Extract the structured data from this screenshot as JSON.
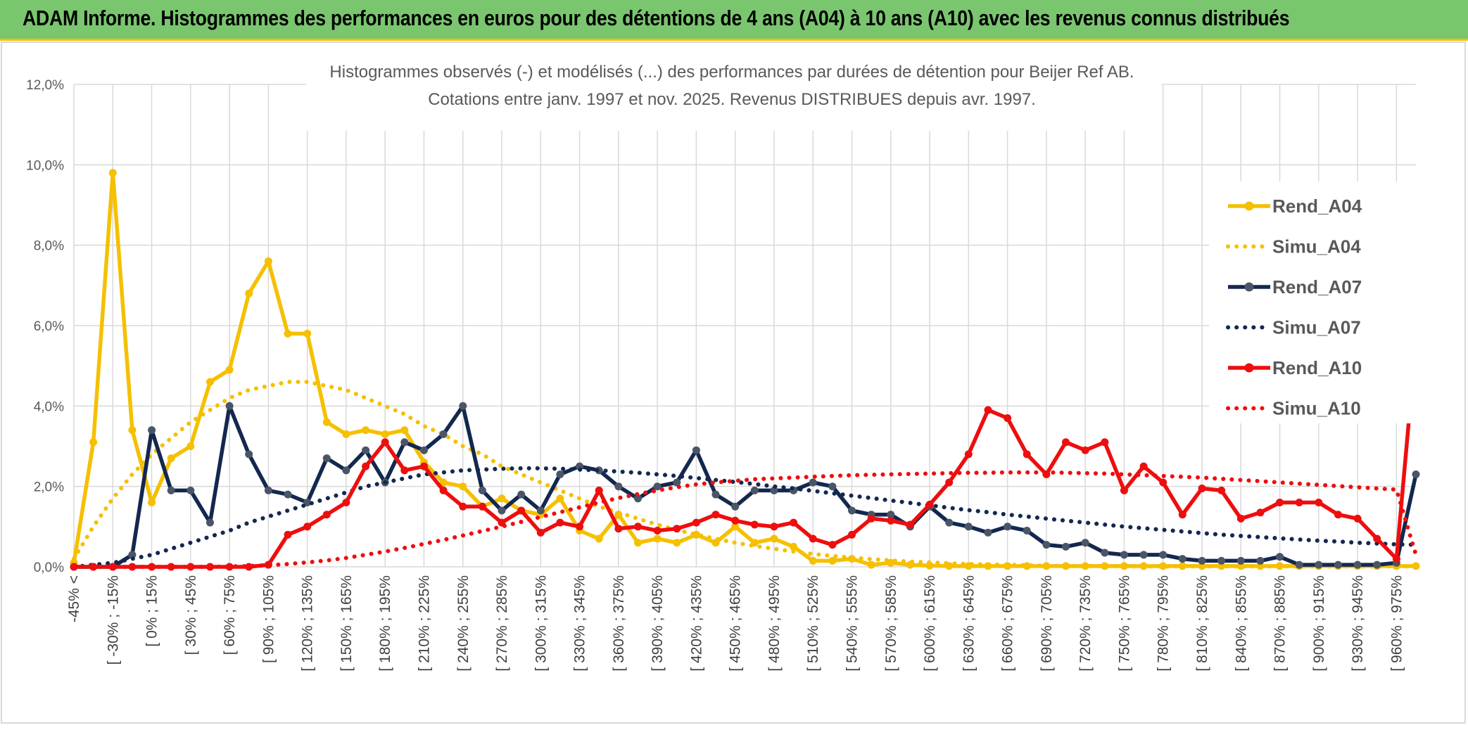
{
  "header": {
    "title": "ADAM Informe. Histogrammes des performances en euros pour des détentions de 4 ans (A04) à 10 ans (A10) avec les revenus connus distribués"
  },
  "chart_data": {
    "type": "line",
    "title": "Histogrammes observés (-) et modélisés (...) des performances par durées de détention pour Beijer Ref AB.",
    "subtitle": "Cotations entre janv. 1997 et nov. 2025. Revenus DISTRIBUES depuis avr. 1997.",
    "xlabel": "",
    "ylabel": "",
    "ylim": [
      0,
      12
    ],
    "y_ticks": [
      "0,0%",
      "2,0%",
      "4,0%",
      "6,0%",
      "8,0%",
      "10,0%",
      "12,0%"
    ],
    "grid": true,
    "legend_position": "right",
    "x_tick_labels": [
      "-45% <",
      "[ -30% ; -15%",
      "[ 0% ; 15%",
      "[ 30% ; 45%",
      "[ 60% ; 75%",
      "[ 90% ; 105%",
      "[ 120% ; 135%",
      "[ 150% ; 165%",
      "[ 180% ; 195%",
      "[ 210% ; 225%",
      "[ 240% ; 255%",
      "[ 270% ; 285%",
      "[ 300% ; 315%",
      "[ 330% ; 345%",
      "[ 360% ; 375%",
      "[ 390% ; 405%",
      "[ 420% ; 435%",
      "[ 450% ; 465%",
      "[ 480% ; 495%",
      "[ 510% ; 525%",
      "[ 540% ; 555%",
      "[ 570% ; 585%",
      "[ 600% ; 615%",
      "[ 630% ; 645%",
      "[ 660% ; 675%",
      "[ 690% ; 705%",
      "[ 720% ; 735%",
      "[ 750% ; 765%",
      "[ 780% ; 795%",
      "[ 810% ; 825%",
      "[ 840% ; 855%",
      "[ 870% ; 885%",
      "[ 900% ; 915%",
      "[ 930% ; 945%",
      "[ 960% ; 975%"
    ],
    "x_tick_every": 2,
    "num_categories": 70,
    "series": [
      {
        "name": "Rend_A04",
        "style": "solid",
        "color": "#f5c000",
        "values": [
          0.1,
          3.1,
          9.8,
          3.4,
          1.6,
          2.7,
          3.0,
          4.6,
          4.9,
          6.8,
          7.6,
          5.8,
          5.8,
          3.6,
          3.3,
          3.4,
          3.3,
          3.4,
          2.6,
          2.1,
          2.0,
          1.5,
          1.7,
          1.4,
          1.3,
          1.7,
          0.9,
          0.7,
          1.3,
          0.6,
          0.7,
          0.6,
          0.8,
          0.6,
          1.0,
          0.6,
          0.7,
          0.5,
          0.15,
          0.15,
          0.2,
          0.05,
          0.1,
          0.05,
          0.03,
          0.02,
          0.02,
          0.02,
          0.02,
          0.02,
          0.02,
          0.02,
          0.02,
          0.02,
          0.02,
          0.02,
          0.02,
          0.02,
          0.02,
          0.02,
          0.02,
          0.02,
          0.02,
          0.02,
          0.02,
          0.02,
          0.02,
          0.02,
          0.02,
          0.02
        ]
      },
      {
        "name": "Simu_A04",
        "style": "dotted",
        "color": "#f5c000",
        "values": [
          0.2,
          1.0,
          1.7,
          2.3,
          2.8,
          3.2,
          3.6,
          3.9,
          4.2,
          4.4,
          4.5,
          4.6,
          4.6,
          4.5,
          4.4,
          4.2,
          4.0,
          3.8,
          3.5,
          3.3,
          3.0,
          2.8,
          2.5,
          2.3,
          2.1,
          1.9,
          1.7,
          1.5,
          1.35,
          1.2,
          1.05,
          0.92,
          0.8,
          0.7,
          0.6,
          0.52,
          0.45,
          0.38,
          0.32,
          0.27,
          0.23,
          0.19,
          0.16,
          0.13,
          0.11,
          0.09,
          0.07,
          0.06,
          0.05,
          0.04,
          0.03,
          0.02,
          0.02,
          0.02,
          0.01,
          0.01,
          0.01,
          0.01,
          0.01,
          0.01,
          0.01,
          0.01,
          0.01,
          0.01,
          0.01,
          0.01,
          0.01,
          0.01,
          0.01,
          0.01
        ]
      },
      {
        "name": "Rend_A07",
        "style": "solid",
        "color": "#13284f",
        "values": [
          0.0,
          0.0,
          0.0,
          0.3,
          3.4,
          1.9,
          1.9,
          1.1,
          4.0,
          2.8,
          1.9,
          1.8,
          1.6,
          2.7,
          2.4,
          2.9,
          2.1,
          3.1,
          2.9,
          3.3,
          4.0,
          1.9,
          1.4,
          1.8,
          1.4,
          2.3,
          2.5,
          2.4,
          2.0,
          1.7,
          2.0,
          2.1,
          2.9,
          1.8,
          1.5,
          1.9,
          1.9,
          1.9,
          2.1,
          2.0,
          1.4,
          1.3,
          1.3,
          1.0,
          1.5,
          1.1,
          1.0,
          0.85,
          1.0,
          0.9,
          0.55,
          0.5,
          0.6,
          0.35,
          0.3,
          0.3,
          0.3,
          0.2,
          0.15,
          0.15,
          0.15,
          0.15,
          0.25,
          0.05,
          0.05,
          0.05,
          0.05,
          0.05,
          0.1,
          2.3
        ]
      },
      {
        "name": "Simu_A07",
        "style": "dotted",
        "color": "#13284f",
        "values": [
          0.0,
          0.05,
          0.1,
          0.2,
          0.3,
          0.45,
          0.6,
          0.75,
          0.9,
          1.1,
          1.25,
          1.4,
          1.55,
          1.7,
          1.85,
          2.0,
          2.1,
          2.2,
          2.3,
          2.35,
          2.4,
          2.42,
          2.44,
          2.45,
          2.45,
          2.44,
          2.42,
          2.4,
          2.37,
          2.34,
          2.3,
          2.26,
          2.21,
          2.16,
          2.11,
          2.06,
          2.0,
          1.95,
          1.89,
          1.83,
          1.77,
          1.71,
          1.65,
          1.59,
          1.53,
          1.47,
          1.41,
          1.36,
          1.3,
          1.25,
          1.2,
          1.15,
          1.1,
          1.05,
          1.0,
          0.96,
          0.92,
          0.88,
          0.84,
          0.8,
          0.77,
          0.74,
          0.71,
          0.68,
          0.65,
          0.63,
          0.6,
          0.58,
          0.56,
          0.55
        ]
      },
      {
        "name": "Rend_A10",
        "style": "solid",
        "color": "#ee0e0e",
        "values": [
          0.0,
          0.0,
          0.0,
          0.0,
          0.0,
          0.0,
          0.0,
          0.0,
          0.0,
          0.0,
          0.05,
          0.8,
          1.0,
          1.3,
          1.6,
          2.5,
          3.1,
          2.4,
          2.5,
          1.9,
          1.5,
          1.5,
          1.1,
          1.4,
          0.85,
          1.1,
          1.0,
          1.9,
          0.95,
          1.0,
          0.9,
          0.95,
          1.1,
          1.3,
          1.15,
          1.05,
          1.0,
          1.1,
          0.7,
          0.55,
          0.8,
          1.2,
          1.15,
          1.05,
          1.55,
          2.1,
          2.8,
          3.9,
          3.7,
          2.8,
          2.3,
          3.1,
          2.9,
          3.1,
          1.9,
          2.5,
          2.1,
          1.3,
          1.95,
          1.9,
          1.2,
          1.35,
          1.6,
          1.6,
          1.6,
          1.3,
          1.2,
          0.7,
          0.2,
          5.6
        ]
      },
      {
        "name": "Simu_A10",
        "style": "dotted",
        "color": "#ee0e0e",
        "values": [
          0.0,
          0.0,
          0.0,
          0.0,
          0.0,
          0.0,
          0.0,
          0.0,
          0.01,
          0.02,
          0.04,
          0.07,
          0.11,
          0.16,
          0.22,
          0.3,
          0.38,
          0.47,
          0.57,
          0.67,
          0.78,
          0.89,
          1.0,
          1.12,
          1.24,
          1.36,
          1.48,
          1.6,
          1.71,
          1.81,
          1.9,
          1.98,
          2.05,
          2.1,
          2.14,
          2.18,
          2.2,
          2.22,
          2.24,
          2.26,
          2.28,
          2.29,
          2.3,
          2.31,
          2.32,
          2.33,
          2.34,
          2.34,
          2.35,
          2.35,
          2.35,
          2.34,
          2.33,
          2.32,
          2.3,
          2.28,
          2.26,
          2.24,
          2.22,
          2.19,
          2.16,
          2.13,
          2.1,
          2.07,
          2.04,
          2.01,
          1.98,
          1.95,
          1.92,
          0.3
        ]
      }
    ]
  }
}
